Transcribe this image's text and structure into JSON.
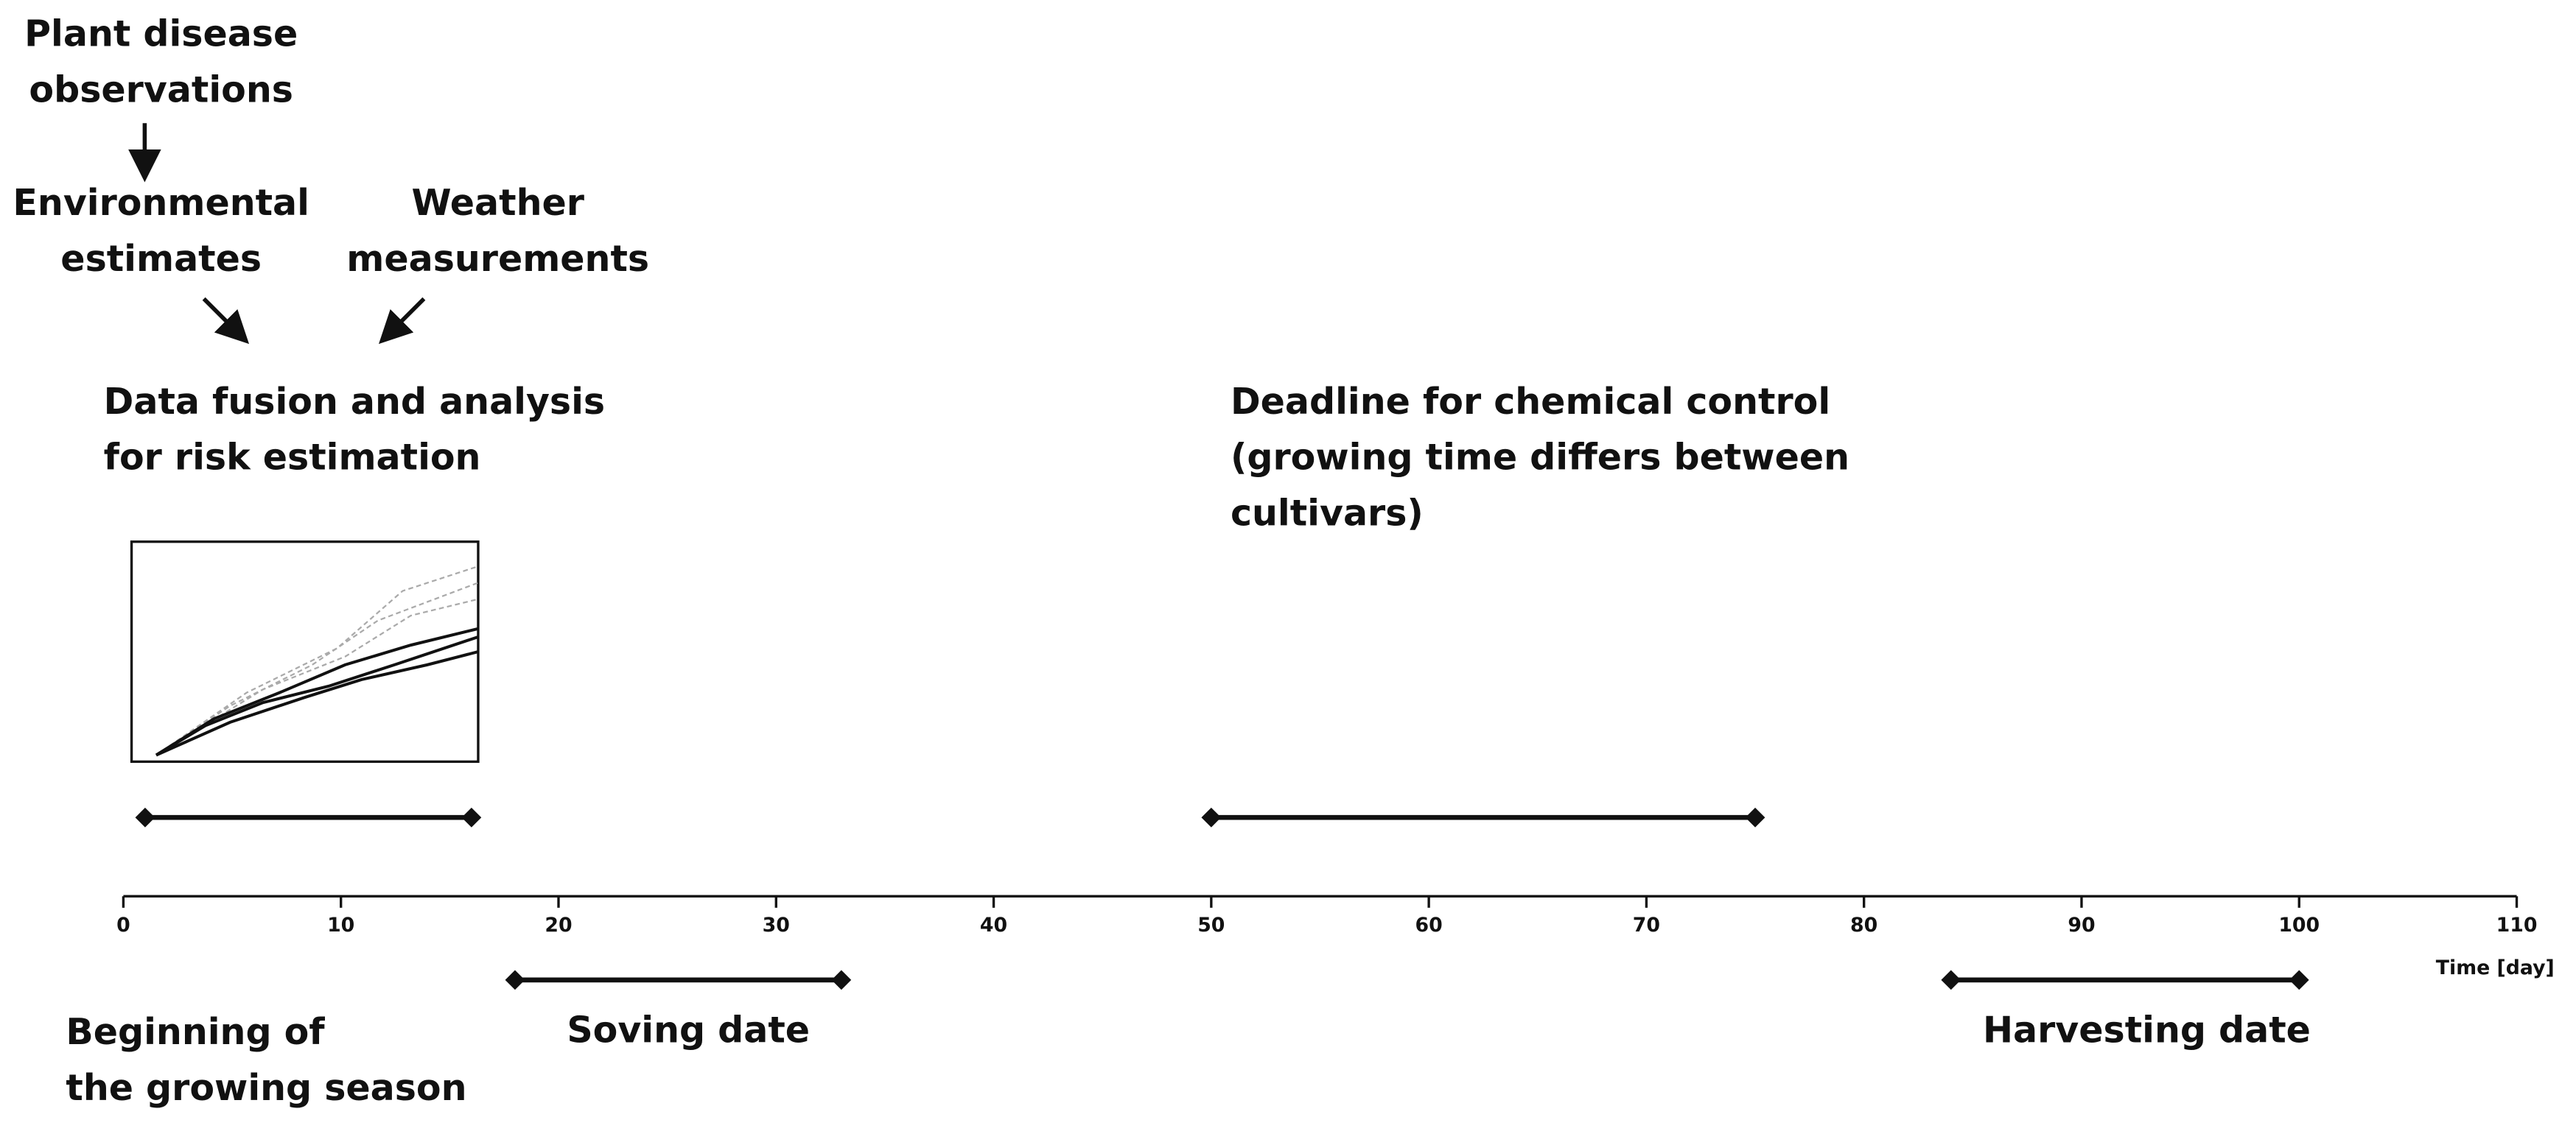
{
  "diagram": {
    "type": "timeline",
    "xlim": [
      0,
      110
    ],
    "xticks": [
      0,
      10,
      20,
      30,
      40,
      50,
      60,
      70,
      80,
      90,
      100,
      110
    ],
    "xlabel": "Time [day]",
    "intervals": [
      {
        "start": 1,
        "end": 16
      },
      {
        "start": 50,
        "end": 75
      },
      {
        "start": 18,
        "end": 33
      },
      {
        "start": 84,
        "end": 100
      }
    ],
    "notes": [
      {
        "lines": [
          "Plant disease",
          "observations"
        ]
      },
      {
        "lines": [
          "Environmental",
          "estimates"
        ]
      },
      {
        "lines": [
          "Weather",
          "measurements"
        ]
      },
      {
        "lines": [
          "Data fusion and analysis",
          "for risk estimation"
        ]
      },
      {
        "lines": [
          "Deadline for chemical control",
          "(growing time differs between",
          "cultivars)"
        ]
      },
      {
        "lines": [
          "Beginning of",
          "the growing season"
        ]
      },
      {
        "lines": [
          "Soving date"
        ]
      },
      {
        "lines": [
          "Harvesting date"
        ]
      }
    ]
  }
}
